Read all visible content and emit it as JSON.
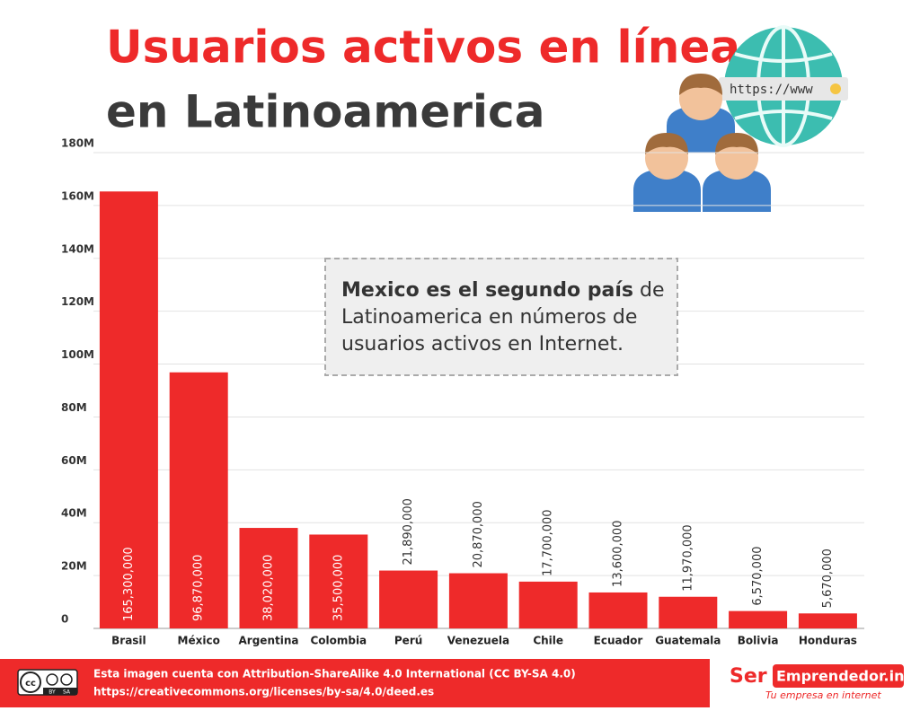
{
  "chart_data": {
    "type": "bar",
    "title": "Usuarios activos en línea",
    "subtitle": "en Latinoamerica",
    "categories": [
      "Brasil",
      "México",
      "Argentina",
      "Colombia",
      "Perú",
      "Venezuela",
      "Chile",
      "Ecuador",
      "Guatemala",
      "Bolivia",
      "Honduras"
    ],
    "values": [
      165300000,
      96870000,
      38020000,
      35500000,
      21890000,
      20870000,
      17700000,
      13600000,
      11970000,
      6570000,
      5670000
    ],
    "value_labels": [
      "165,300,000",
      "96,870,000",
      "38,020,000",
      "35,500,000",
      "21,890,000",
      "20,870,000",
      "17,700,000",
      "13,600,000",
      "11,970,000",
      "6,570,000",
      "5,670,000"
    ],
    "color": "#ee2a2a",
    "ylim": [
      0,
      180000000
    ],
    "yticks": [
      0,
      {
        "value": 20000000,
        "label": "20M"
      },
      {
        "value": 40000000,
        "label": "40M"
      },
      {
        "value": 60000000,
        "label": "60M"
      },
      {
        "value": 80000000,
        "label": "80M"
      },
      {
        "value": 100000000,
        "label": "100M"
      },
      {
        "value": 120000000,
        "label": "120M"
      },
      {
        "value": 140000000,
        "label": "140M"
      },
      {
        "value": 160000000,
        "label": "160M"
      },
      {
        "value": 180000000,
        "label": "180M"
      }
    ],
    "grid": true,
    "annotation": {
      "bold": "Mexico es el segundo país",
      "lines": [
        " de",
        "Latinoamerica en números de",
        "usuarios activos en Internet."
      ]
    }
  },
  "illustration_text": "https://www",
  "footer": {
    "license_lines": [
      "Esta imagen cuenta con Attribution-ShareAlike 4.0 International (CC BY-SA 4.0)",
      "https://creativecommons.org/licenses/by-sa/4.0/deed.es"
    ],
    "badge": [
      "cc",
      "BY",
      "SA"
    ],
    "logo": {
      "ser": "Ser",
      "rest": "Emprendedor.info",
      "tagline": "Tu empresa en internet"
    }
  }
}
